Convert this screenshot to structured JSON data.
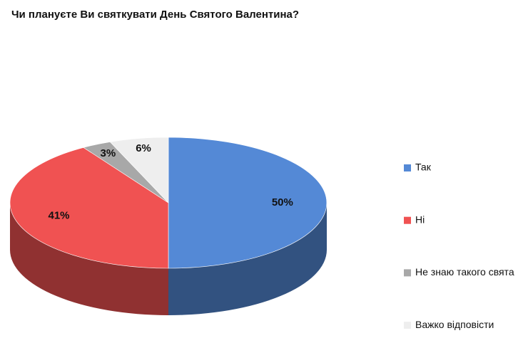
{
  "chart_data": {
    "type": "pie3d",
    "title": "Чи плануєте Ви святкувати День Святого Валентина?",
    "categories": [
      "Так",
      "Ні",
      "Не знаю такого свята",
      "Важко відповісти"
    ],
    "values": [
      50,
      41,
      3,
      6
    ],
    "value_labels": [
      "50%",
      "41%",
      "3%",
      "6%"
    ],
    "colors": [
      "#5489d6",
      "#f05252",
      "#a8a8a8",
      "#eeeeee"
    ]
  }
}
